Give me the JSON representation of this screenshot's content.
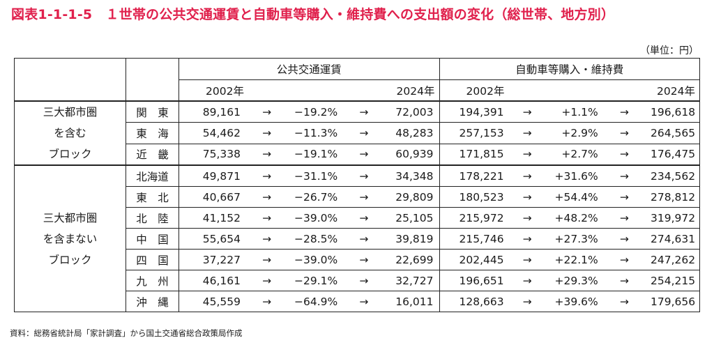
{
  "title": "図表1-1-1-5　１世帯の公共交通運賃と自動車等購入・維持費への支出額の変化（総世帯、地方別）",
  "unit": "（単位：円）",
  "source": "資料：総務省統計局「家計調査」から国土交通省総合政策局作成",
  "headers": {
    "public": "公共交通運賃",
    "car": "自動車等購入・維持費",
    "year_start": "2002年",
    "year_end": "2024年",
    "arrow": "→"
  },
  "groups": [
    {
      "label_lines": [
        "三大都市圏",
        "を含む",
        "ブロック"
      ]
    },
    {
      "label_lines": [
        "三大都市圏",
        "を含まない",
        "ブロック"
      ]
    }
  ],
  "rows": [
    {
      "region": "関　東",
      "pub": [
        "89,161",
        "−19.2%",
        "72,003"
      ],
      "car": [
        "194,391",
        "+1.1%",
        "196,618"
      ]
    },
    {
      "region": "東　海",
      "pub": [
        "54,462",
        "−11.3%",
        "48,283"
      ],
      "car": [
        "257,153",
        "+2.9%",
        "264,565"
      ]
    },
    {
      "region": "近　畿",
      "pub": [
        "75,338",
        "−19.1%",
        "60,939"
      ],
      "car": [
        "171,815",
        "+2.7%",
        "176,475"
      ]
    },
    {
      "region": "北海道",
      "pub": [
        "49,871",
        "−31.1%",
        "34,348"
      ],
      "car": [
        "178,221",
        "+31.6%",
        "234,562"
      ]
    },
    {
      "region": "東　北",
      "pub": [
        "40,667",
        "−26.7%",
        "29,809"
      ],
      "car": [
        "180,523",
        "+54.4%",
        "278,812"
      ]
    },
    {
      "region": "北　陸",
      "pub": [
        "41,152",
        "−39.0%",
        "25,105"
      ],
      "car": [
        "215,972",
        "+48.2%",
        "319,972"
      ]
    },
    {
      "region": "中　国",
      "pub": [
        "55,654",
        "−28.5%",
        "39,819"
      ],
      "car": [
        "215,746",
        "+27.3%",
        "274,631"
      ]
    },
    {
      "region": "四　国",
      "pub": [
        "37,227",
        "−39.0%",
        "22,699"
      ],
      "car": [
        "202,445",
        "+22.1%",
        "247,262"
      ]
    },
    {
      "region": "九　州",
      "pub": [
        "46,161",
        "−29.1%",
        "32,727"
      ],
      "car": [
        "196,651",
        "+29.3%",
        "254,215"
      ]
    },
    {
      "region": "沖　縄",
      "pub": [
        "45,559",
        "−64.9%",
        "16,011"
      ],
      "car": [
        "128,663",
        "+39.6%",
        "179,656"
      ]
    }
  ]
}
